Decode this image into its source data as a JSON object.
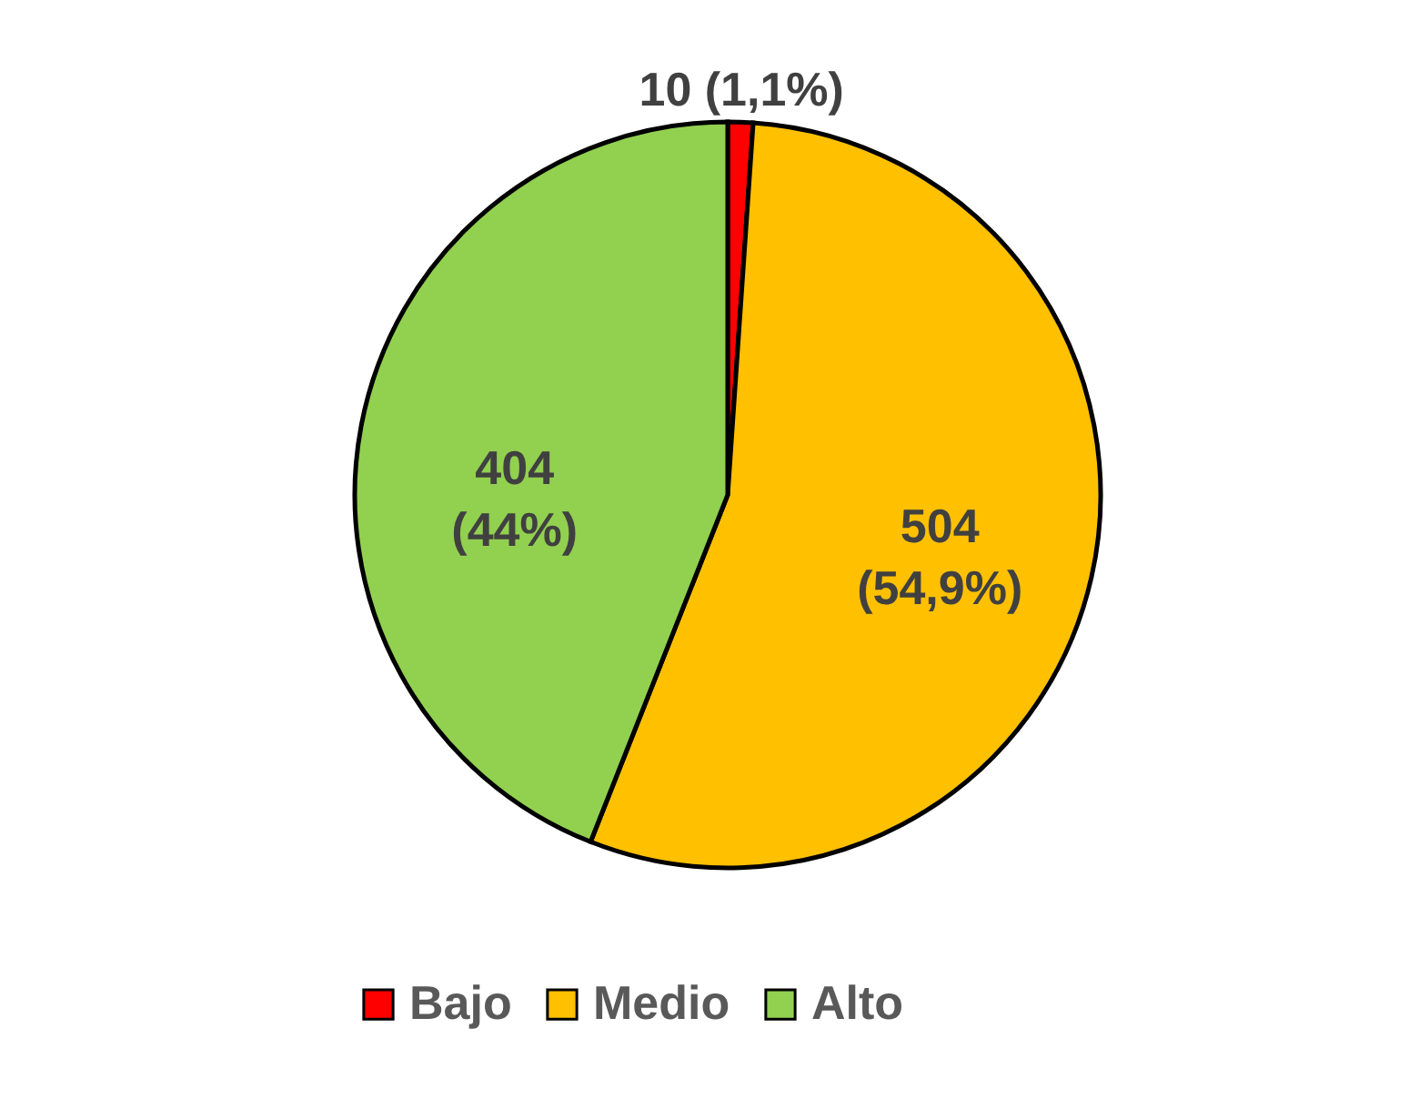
{
  "chart_data": {
    "type": "pie",
    "categories": [
      "Bajo",
      "Medio",
      "Alto"
    ],
    "values": [
      10,
      504,
      404
    ],
    "colors": [
      "#ff0000",
      "#ffc000",
      "#92d050"
    ],
    "value_labels": [
      "10 (1,1%)",
      "504 (54,9%)",
      "404 (44%)"
    ],
    "legend": "bottom"
  }
}
